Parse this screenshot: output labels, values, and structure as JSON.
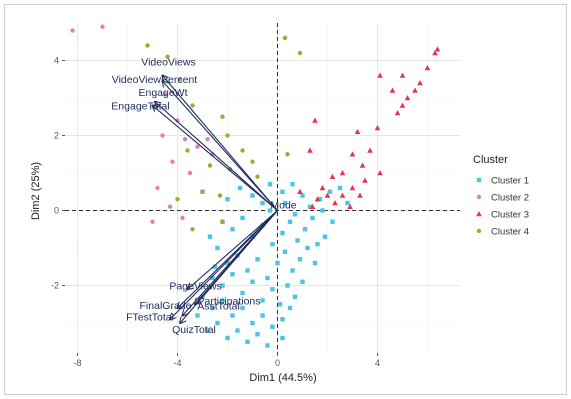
{
  "chart_data": {
    "type": "scatter",
    "title": "",
    "xlabel": "Dim1 (44.5%)",
    "ylabel": "Dim2 (25%)",
    "xlim": [
      -8.5,
      7.3
    ],
    "ylim": [
      -3.8,
      5.0
    ],
    "x_ticks": [
      -8,
      -4,
      0,
      4
    ],
    "y_ticks": [
      -2,
      0,
      2,
      4
    ],
    "x_tick_labels": [
      "-8",
      "-4",
      "0",
      "4"
    ],
    "y_tick_labels": [
      "-2",
      "0",
      "2",
      "4"
    ],
    "grid": true,
    "reference_lines": [
      {
        "axis": "x",
        "value": 0,
        "style": "dashed"
      },
      {
        "axis": "y",
        "value": 0,
        "style": "dashed"
      }
    ],
    "legend": {
      "title": "Cluster",
      "position": "right"
    },
    "series": [
      {
        "name": "Cluster 1",
        "color": "#4fc3e3",
        "marker": "square",
        "points": [
          [
            -2.0,
            0.3
          ],
          [
            -1.5,
            0.6
          ],
          [
            -1.0,
            0.4
          ],
          [
            -0.6,
            0.2
          ],
          [
            -0.3,
            0.7
          ],
          [
            0.2,
            0.5
          ],
          [
            0.6,
            0.7
          ],
          [
            1.0,
            0.4
          ],
          [
            1.3,
            0.1
          ],
          [
            1.7,
            0.3
          ],
          [
            2.1,
            0.5
          ],
          [
            2.5,
            0.6
          ],
          [
            -2.2,
            -0.3
          ],
          [
            -1.8,
            -0.5
          ],
          [
            -1.4,
            -0.2
          ],
          [
            -1.0,
            -0.7
          ],
          [
            -0.6,
            -0.4
          ],
          [
            -0.2,
            -0.9
          ],
          [
            0.2,
            -0.6
          ],
          [
            0.5,
            -0.3
          ],
          [
            0.8,
            -0.8
          ],
          [
            1.1,
            -0.5
          ],
          [
            1.4,
            -0.2
          ],
          [
            1.6,
            -0.9
          ],
          [
            1.9,
            -0.7
          ],
          [
            2.2,
            -0.3
          ],
          [
            -2.4,
            -1.0
          ],
          [
            -2.0,
            -1.4
          ],
          [
            -1.6,
            -1.2
          ],
          [
            -1.2,
            -1.6
          ],
          [
            -0.8,
            -1.3
          ],
          [
            -0.4,
            -1.8
          ],
          [
            0.0,
            -1.4
          ],
          [
            0.3,
            -1.1
          ],
          [
            0.6,
            -1.6
          ],
          [
            0.9,
            -1.3
          ],
          [
            1.2,
            -1.0
          ],
          [
            1.5,
            -1.4
          ],
          [
            -2.6,
            -1.8
          ],
          [
            -2.2,
            -2.0
          ],
          [
            -1.8,
            -1.7
          ],
          [
            -1.4,
            -2.2
          ],
          [
            -1.0,
            -1.9
          ],
          [
            -0.6,
            -2.4
          ],
          [
            -0.2,
            -2.1
          ],
          [
            0.1,
            -2.5
          ],
          [
            0.4,
            -2.0
          ],
          [
            0.7,
            -2.3
          ],
          [
            1.0,
            -1.9
          ],
          [
            -3.0,
            -2.3
          ],
          [
            -2.6,
            -2.6
          ],
          [
            -2.2,
            -2.4
          ],
          [
            -1.8,
            -2.8
          ],
          [
            -1.4,
            -2.6
          ],
          [
            -1.0,
            -3.0
          ],
          [
            -0.6,
            -2.8
          ],
          [
            -0.2,
            -3.1
          ],
          [
            0.2,
            -2.9
          ],
          [
            0.5,
            -2.6
          ],
          [
            -3.2,
            -2.8
          ],
          [
            -2.8,
            -3.2
          ],
          [
            -2.4,
            -3.0
          ],
          [
            -2.0,
            -3.4
          ],
          [
            -1.6,
            -3.2
          ],
          [
            -1.2,
            -3.5
          ],
          [
            -0.8,
            -3.3
          ],
          [
            -0.4,
            -3.6
          ],
          [
            0.2,
            -3.4
          ],
          [
            -2.7,
            -0.7
          ],
          [
            -3.0,
            0.5
          ],
          [
            -2.5,
            -1.5
          ],
          [
            -0.3,
            0.0
          ],
          [
            0.3,
            0.2
          ],
          [
            0.7,
            -0.1
          ],
          [
            1.8,
            0.0
          ],
          [
            2.8,
            0.2
          ]
        ]
      },
      {
        "name": "Cluster 2",
        "color": "#e07fc0",
        "marker": "circle",
        "points": [
          [
            -8.2,
            4.8
          ],
          [
            -7.0,
            4.9
          ],
          [
            -4.5,
            3.1
          ],
          [
            -4.0,
            2.4
          ],
          [
            -4.6,
            2.0
          ],
          [
            -3.7,
            1.9
          ],
          [
            -3.2,
            1.7
          ],
          [
            -2.8,
            1.9
          ],
          [
            -4.2,
            1.3
          ],
          [
            -3.5,
            1.0
          ],
          [
            -4.8,
            0.6
          ],
          [
            -4.3,
            0.1
          ],
          [
            -5.0,
            -0.3
          ],
          [
            -3.8,
            -0.2
          ],
          [
            -2.6,
            1.5
          ]
        ]
      },
      {
        "name": "Cluster 3",
        "color": "#e8344a",
        "marker": "triangle",
        "points": [
          [
            6.4,
            4.3
          ],
          [
            6.3,
            4.2
          ],
          [
            6.0,
            3.8
          ],
          [
            5.7,
            3.4
          ],
          [
            5.5,
            3.2
          ],
          [
            5.2,
            3.0
          ],
          [
            5.0,
            2.8
          ],
          [
            4.8,
            2.6
          ],
          [
            4.6,
            3.2
          ],
          [
            4.1,
            3.6
          ],
          [
            5.0,
            3.6
          ],
          [
            4.0,
            2.2
          ],
          [
            3.2,
            2.1
          ],
          [
            1.5,
            2.4
          ],
          [
            1.3,
            1.6
          ],
          [
            3.0,
            1.5
          ],
          [
            3.4,
            1.2
          ],
          [
            2.6,
            1.0
          ],
          [
            2.2,
            0.9
          ],
          [
            3.5,
            0.8
          ],
          [
            3.0,
            0.6
          ],
          [
            1.8,
            0.6
          ],
          [
            2.0,
            0.4
          ],
          [
            2.6,
            0.4
          ],
          [
            3.3,
            0.4
          ],
          [
            1.6,
            0.3
          ],
          [
            2.3,
            0.2
          ],
          [
            1.4,
            0.1
          ],
          [
            2.9,
            0.1
          ],
          [
            0.9,
            0.5
          ],
          [
            4.1,
            1.0
          ],
          [
            3.7,
            1.6
          ]
        ]
      },
      {
        "name": "Cluster 4",
        "color": "#9cad2c",
        "marker": "circle",
        "points": [
          [
            -5.2,
            4.4
          ],
          [
            -4.4,
            4.1
          ],
          [
            0.3,
            4.6
          ],
          [
            0.9,
            4.2
          ],
          [
            -3.9,
            3.5
          ],
          [
            -3.4,
            2.8
          ],
          [
            -2.2,
            2.5
          ],
          [
            -2.0,
            2.0
          ],
          [
            -1.4,
            1.6
          ],
          [
            -3.6,
            1.6
          ],
          [
            -2.7,
            1.2
          ],
          [
            -1.9,
            1.1
          ],
          [
            -1.0,
            1.3
          ],
          [
            -3.0,
            0.5
          ],
          [
            -2.3,
            0.4
          ],
          [
            -3.4,
            -0.5
          ],
          [
            -2.2,
            -0.3
          ],
          [
            -0.8,
            0.9
          ],
          [
            0.4,
            1.5
          ],
          [
            -4.0,
            0.3
          ]
        ]
      }
    ],
    "vectors": [
      {
        "label": "VideoViews",
        "x": -4.6,
        "y": 3.6
      },
      {
        "label": "VideoViewPercent",
        "x": -4.6,
        "y": 3.45
      },
      {
        "label": "EngageWt",
        "x": -4.9,
        "y": 2.9
      },
      {
        "label": "EngageTotal",
        "x": -5.0,
        "y": 2.8
      },
      {
        "label": "Mode",
        "x": 0.0,
        "y": 0.0
      },
      {
        "label": "PageViews",
        "x": -3.6,
        "y": -2.1
      },
      {
        "label": "FinalGrade",
        "x": -4.0,
        "y": -2.6
      },
      {
        "label": "Participations",
        "x": -3.3,
        "y": -2.5
      },
      {
        "label": "FTestTotal",
        "x": -4.3,
        "y": -2.9
      },
      {
        "label": "AsstTotal",
        "x": -3.8,
        "y": -2.8
      },
      {
        "label": "QuizTotal",
        "x": -3.9,
        "y": -3.0
      }
    ]
  }
}
